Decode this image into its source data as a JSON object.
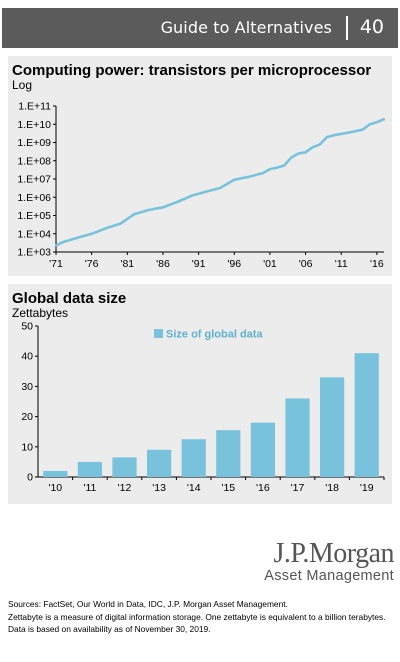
{
  "header": {
    "title": "Guide to Alternatives",
    "page_number": "40"
  },
  "logo": {
    "name": "J.P.Morgan",
    "tagline": "Asset Management"
  },
  "footnotes": [
    "Sources: FactSet, Our World in Data, IDC, J.P. Morgan Asset Management.",
    "Zettabyte is a measure of digital information storage. One zettabyte is equivalent to a billion terabytes.",
    "Data is based on availability as of November 30, 2019."
  ],
  "colors": {
    "series": "#79c2dc",
    "header_bg": "#5b5b5b",
    "panel_bg": "#ececec"
  },
  "chart_data": [
    {
      "type": "line",
      "title": "Computing power: transistors per microprocessor",
      "subtitle": "Log",
      "scale": "log",
      "grid": false,
      "ylim": [
        1000,
        100000000000
      ],
      "yticks": [
        "1.E+03",
        "1.E+04",
        "1.E+05",
        "1.E+06",
        "1.E+07",
        "1.E+08",
        "1.E+09",
        "1.E+10",
        "1.E+11"
      ],
      "xticks": [
        "'71",
        "'76",
        "'81",
        "'86",
        "'91",
        "'96",
        "'01",
        "'06",
        "'11",
        "'16"
      ],
      "series": [
        {
          "x": [
            1971,
            1972,
            1974,
            1976,
            1978,
            1980,
            1982,
            1984,
            1986,
            1988,
            1990,
            1992,
            1994,
            1996,
            1998,
            2000,
            2001,
            2002,
            2003,
            2004,
            2005,
            2006,
            2007,
            2008,
            2009,
            2010,
            2012,
            2014,
            2015,
            2016,
            2017
          ],
          "values": [
            2300,
            3500,
            6000,
            10000,
            20000,
            35000,
            120000,
            200000,
            280000,
            550000,
            1200000,
            2000000,
            3200000,
            9000000,
            13000000,
            21000000,
            35000000,
            42000000,
            55000000,
            150000000,
            250000000,
            290000000,
            550000000,
            780000000,
            2000000000,
            2500000000,
            3500000000,
            5000000000,
            10000000000,
            13000000000,
            19000000000
          ]
        }
      ]
    },
    {
      "type": "bar",
      "title": "Global data size",
      "subtitle": "Zettabytes",
      "grid": false,
      "ylim": [
        0,
        50
      ],
      "yticks": [
        0,
        10,
        20,
        30,
        40,
        50
      ],
      "categories": [
        "'10",
        "'11",
        "'12",
        "'13",
        "'14",
        "'15",
        "'16",
        "'17",
        "'18",
        "'19"
      ],
      "legend": {
        "position": "top-left",
        "label": "Size of global data"
      },
      "series": [
        {
          "name": "Size of global data",
          "values": [
            2,
            5,
            6.5,
            9,
            12.5,
            15.5,
            18,
            26,
            33,
            41
          ]
        }
      ]
    }
  ]
}
